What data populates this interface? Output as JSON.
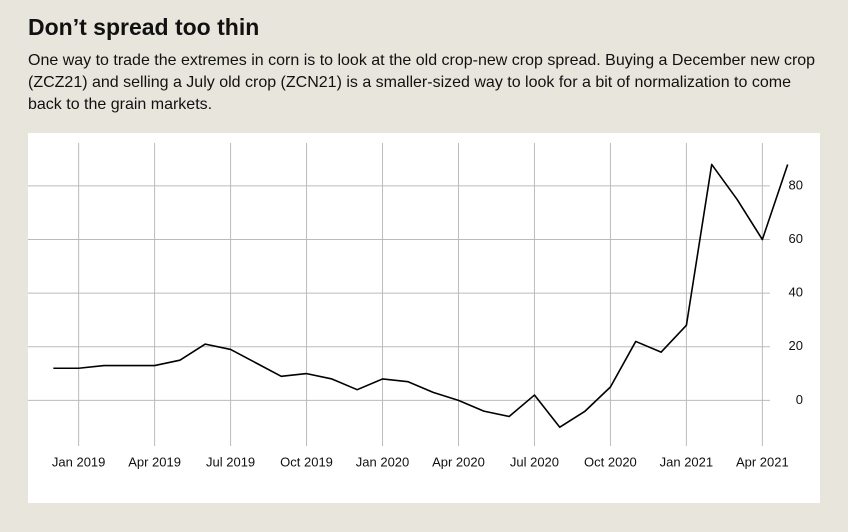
{
  "chart_data": {
    "type": "line",
    "title": "Don’t spread too thin",
    "subtitle": "One way to trade the extremes in corn is to look at the old crop-new crop spread. Buying a December new crop (ZCZ21) and selling a July old crop  (ZCN21) is a smaller-sized way to look for a bit of normalization to come back to the grain markets.",
    "x": [
      "2018-12",
      "2019-01",
      "2019-02",
      "2019-03",
      "2019-04",
      "2019-05",
      "2019-06",
      "2019-07",
      "2019-08",
      "2019-09",
      "2019-10",
      "2019-11",
      "2019-12",
      "2020-01",
      "2020-02",
      "2020-03",
      "2020-04",
      "2020-05",
      "2020-06",
      "2020-07",
      "2020-08",
      "2020-09",
      "2020-10",
      "2020-11",
      "2020-12",
      "2021-01",
      "2021-02",
      "2021-03",
      "2021-04",
      "2021-05"
    ],
    "series": [
      {
        "color": "#000000",
        "values": [
          12,
          12,
          13,
          13,
          13,
          15,
          21,
          19,
          14,
          9,
          10,
          8,
          4,
          8,
          7,
          3,
          0,
          -4,
          -6,
          2,
          -10,
          -4,
          5,
          22,
          18,
          28,
          88,
          75,
          60,
          88
        ]
      }
    ],
    "xlim": [
      "2018-11",
      "2021-06"
    ],
    "xticks": [
      {
        "value": "2019-01",
        "label": "Jan 2019"
      },
      {
        "value": "2019-04",
        "label": "Apr 2019"
      },
      {
        "value": "2019-07",
        "label": "Jul 2019"
      },
      {
        "value": "2019-10",
        "label": "Oct 2019"
      },
      {
        "value": "2020-01",
        "label": "Jan 2020"
      },
      {
        "value": "2020-04",
        "label": "Apr 2020"
      },
      {
        "value": "2020-07",
        "label": "Jul 2020"
      },
      {
        "value": "2020-10",
        "label": "Oct 2020"
      },
      {
        "value": "2021-01",
        "label": "Jan 2021"
      },
      {
        "value": "2021-04",
        "label": "Apr 2021"
      }
    ],
    "ylim": [
      -17,
      96
    ],
    "yticks": [
      0,
      20,
      40,
      60,
      80
    ],
    "grid": true
  }
}
